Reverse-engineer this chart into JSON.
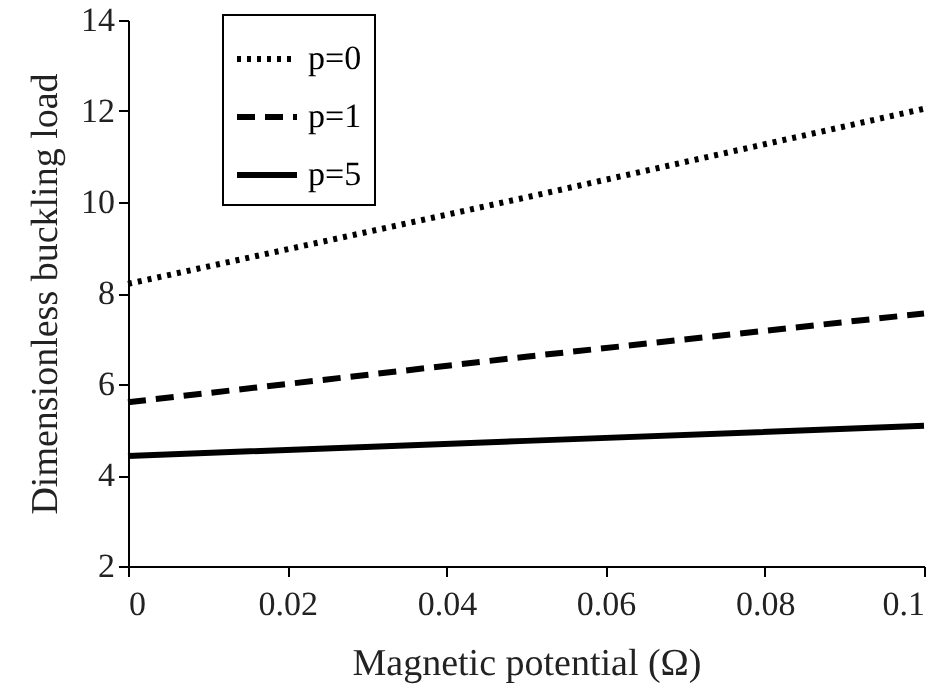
{
  "chart_data": {
    "type": "line",
    "xlabel": "Magnetic potential (Ω)",
    "ylabel": "Dimensionless buckling load",
    "x": [
      0,
      0.05,
      0.1
    ],
    "series": [
      {
        "name": "p=0",
        "color": "#000000",
        "line_style": "dotted",
        "values": [
          8.2,
          10.1,
          12.05
        ]
      },
      {
        "name": "p=1",
        "color": "#000000",
        "line_style": "dashed",
        "values": [
          5.6,
          6.6,
          7.55
        ]
      },
      {
        "name": "p=5",
        "color": "#000000",
        "line_style": "solid",
        "values": [
          4.42,
          4.75,
          5.08
        ]
      }
    ],
    "xlim": [
      0,
      0.1
    ],
    "xticks": [
      0,
      0.02,
      0.04,
      0.06,
      0.08,
      {
        "value": 0.1,
        "label": "0.1"
      }
    ],
    "ylim": [
      2,
      14
    ],
    "yticks": [
      2,
      4,
      6,
      8,
      10,
      12,
      14
    ],
    "grid": false,
    "legend": "top left"
  }
}
